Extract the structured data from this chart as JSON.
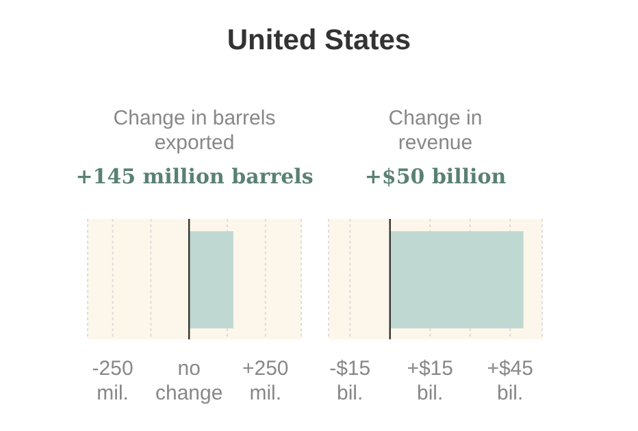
{
  "chart_data": [
    {
      "type": "bar",
      "orientation": "horizontal",
      "annotations": [
        "United States"
      ],
      "title": "Change in barrels exported",
      "categories": [
        null
      ],
      "values": [
        145
      ],
      "subtitle": "+145 million barrels",
      "color": "#c0d8d2",
      "xlim": [
        -332,
        367
      ],
      "xticks": [
        {
          "value": -250,
          "label": "-250 mil."
        },
        {
          "value": -125,
          "label": null
        },
        {
          "value": 0,
          "label": "no change"
        },
        {
          "value": 125,
          "label": null
        },
        {
          "value": 250,
          "label": "+250 mil."
        }
      ],
      "grid": "x",
      "ref_lines": [
        {
          "axis": "x",
          "value": 0,
          "color": "#333333"
        }
      ]
    },
    {
      "type": "bar",
      "orientation": "horizontal",
      "title": "Change in revenue",
      "categories": [
        null
      ],
      "values": [
        50
      ],
      "subtitle": "+$50 billion",
      "color": "#c0d8d2",
      "xlim": [
        -23,
        57
      ],
      "xticks": [
        {
          "value": -15,
          "label": "-$15 bil."
        },
        {
          "value": 15,
          "label": "+$15 bil."
        },
        {
          "value": 30,
          "label": null
        },
        {
          "value": 45,
          "label": "+$45 bil."
        }
      ],
      "grid": "x",
      "ref_lines": [
        {
          "axis": "x",
          "value": 0,
          "color": "#333333"
        }
      ]
    }
  ]
}
